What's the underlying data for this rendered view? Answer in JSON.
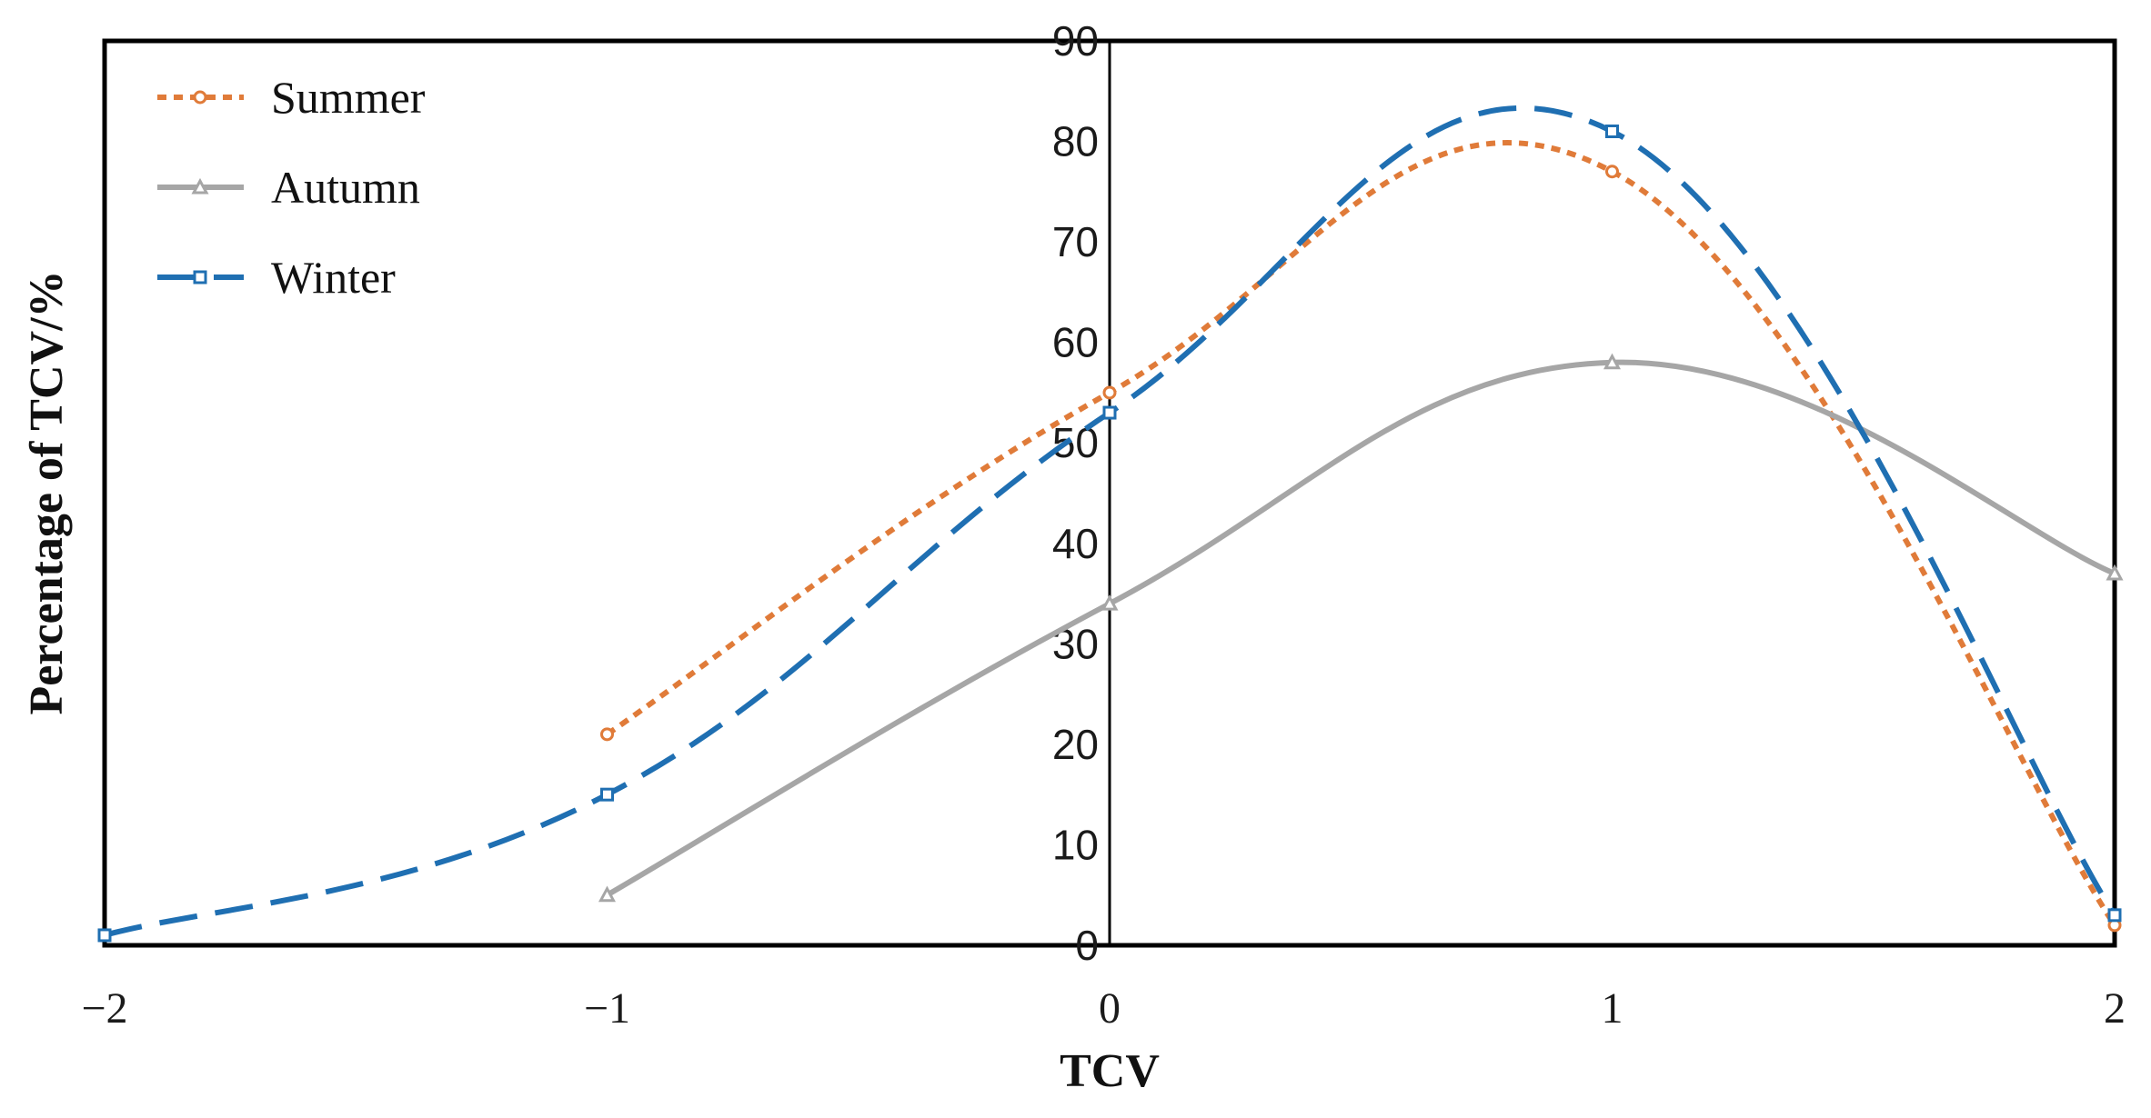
{
  "chart_data": {
    "type": "line",
    "title": "",
    "xlabel": "TCV",
    "ylabel": "Percentage of TCV/%",
    "xlim": [
      -2,
      2
    ],
    "ylim": [
      0,
      90
    ],
    "x_ticks": [
      -2,
      -1,
      0,
      1,
      2
    ],
    "x_tick_labels": [
      "−2",
      "−1",
      "0",
      "1",
      "2"
    ],
    "y_ticks": [
      0,
      10,
      20,
      30,
      40,
      50,
      60,
      70,
      80,
      90
    ],
    "y_tick_labels": [
      "0",
      "10",
      "20",
      "30",
      "40",
      "50",
      "60",
      "70",
      "80",
      "90"
    ],
    "legend_position": "top-left",
    "series": [
      {
        "name": "Summer",
        "color": "#e07b39",
        "dash": "dotted",
        "marker": "circle",
        "x": [
          -1,
          0,
          1,
          2
        ],
        "values": [
          21,
          55,
          77,
          2
        ]
      },
      {
        "name": "Autumn",
        "color": "#a6a6a6",
        "dash": "solid",
        "marker": "triangle",
        "x": [
          -1,
          0,
          1,
          2
        ],
        "values": [
          5,
          34,
          58,
          37
        ]
      },
      {
        "name": "Winter",
        "color": "#1f6fb2",
        "dash": "dashed",
        "marker": "square",
        "x": [
          -2,
          -1,
          0,
          1,
          2
        ],
        "values": [
          1,
          15,
          53,
          81,
          3
        ]
      }
    ]
  }
}
